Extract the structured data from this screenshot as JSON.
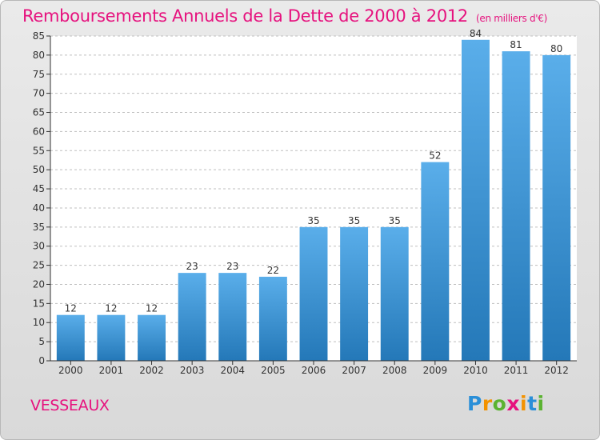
{
  "chart_data": {
    "type": "bar",
    "title": "Remboursements Annuels de la Dette de 2000 à 2012",
    "subtitle": "(en milliers d'€)",
    "categories": [
      "2000",
      "2001",
      "2002",
      "2003",
      "2004",
      "2005",
      "2006",
      "2007",
      "2008",
      "2009",
      "2010",
      "2011",
      "2012"
    ],
    "values": [
      12,
      12,
      12,
      23,
      23,
      22,
      35,
      35,
      35,
      52,
      84,
      81,
      80
    ],
    "xlabel": "",
    "ylabel": "",
    "ylim": [
      0,
      85
    ],
    "yticks": [
      0,
      5,
      10,
      15,
      20,
      25,
      30,
      35,
      40,
      45,
      50,
      55,
      60,
      65,
      70,
      75,
      80,
      85
    ],
    "grid": true,
    "bar_color": "#3b96db"
  },
  "commune": "VESSEAUX",
  "brand": {
    "name": "Proxiti",
    "letters": [
      {
        "char": "P",
        "color": "#2a8fd8"
      },
      {
        "char": "r",
        "color": "#f39200"
      },
      {
        "char": "o",
        "color": "#5bb331"
      },
      {
        "char": "x",
        "color": "#e6127e"
      },
      {
        "char": "i",
        "color": "#f39200"
      },
      {
        "char": "t",
        "color": "#2a8fd8"
      },
      {
        "char": "i",
        "color": "#5bb331"
      }
    ]
  },
  "colors": {
    "accent": "#e6127e",
    "grid": "#bfbfbf",
    "axis": "#333333"
  }
}
